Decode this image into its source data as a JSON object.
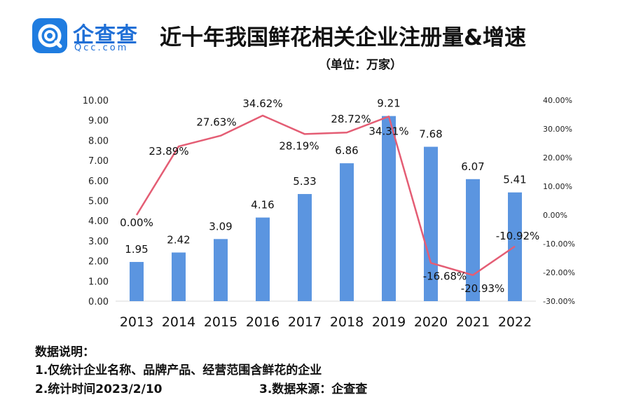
{
  "header": {
    "logo_name": "企查查",
    "logo_sub": "Qcc.com",
    "title": "近十年我国鲜花相关企业注册量&增速",
    "unit": "（单位：万家）"
  },
  "chart_data": {
    "type": "bar+line",
    "categories": [
      "2013",
      "2014",
      "2015",
      "2016",
      "2017",
      "2018",
      "2019",
      "2020",
      "2021",
      "2022"
    ],
    "series": [
      {
        "type": "bar",
        "axis": "left",
        "values": [
          1.95,
          2.42,
          3.09,
          4.16,
          5.33,
          6.86,
          9.21,
          7.68,
          6.07,
          5.41
        ],
        "labels": [
          "1.95",
          "2.42",
          "3.09",
          "4.16",
          "5.33",
          "6.86",
          "9.21",
          "7.68",
          "6.07",
          "5.41"
        ]
      },
      {
        "type": "line",
        "axis": "right",
        "values": [
          0.0,
          23.89,
          27.63,
          34.62,
          28.19,
          28.72,
          34.31,
          -16.68,
          -20.93,
          -10.92
        ],
        "labels": [
          "0.00%",
          "23.89%",
          "27.63%",
          "34.62%",
          "28.19%",
          "28.72%",
          "34.31%",
          "-16.68%",
          "-20.93%",
          "-10.92%"
        ]
      }
    ],
    "y_left": {
      "min": 0,
      "max": 10,
      "step": 1,
      "ticks": [
        "0.00",
        "1.00",
        "2.00",
        "3.00",
        "4.00",
        "5.00",
        "6.00",
        "7.00",
        "8.00",
        "9.00",
        "10.00"
      ]
    },
    "y_right": {
      "min": -30,
      "max": 40,
      "step": 10,
      "ticks": [
        "-30.00%",
        "-20.00%",
        "-10.00%",
        "0.00%",
        "10.00%",
        "20.00%",
        "30.00%",
        "40.00%"
      ]
    },
    "colors": {
      "bar": "#5b95e0",
      "line": "#e45d74"
    }
  },
  "notes": {
    "heading": "数据说明：",
    "line1": "1.仅统计企业名称、品牌产品、经营范围含鲜花的企业",
    "line2a": "2.统计时间2023/2/10",
    "line2b": "3.数据来源：企查查"
  }
}
